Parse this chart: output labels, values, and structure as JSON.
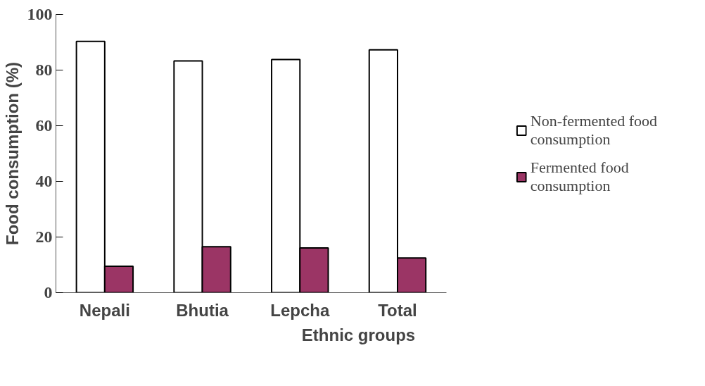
{
  "chart_data": {
    "type": "bar",
    "xlabel": "Ethnic groups",
    "ylabel": "Food consumption (%)",
    "categories": [
      "Nepali",
      "Bhutia",
      "Lepcha",
      "Total"
    ],
    "series": [
      {
        "name": "Non-fermented food consumption",
        "color": "#ffffff",
        "values": [
          90.3,
          83.3,
          83.8,
          87.3
        ]
      },
      {
        "name": "Fermented food consumption",
        "color": "#9b3565",
        "values": [
          9.5,
          16.5,
          16.1,
          12.5
        ]
      }
    ],
    "ylim": [
      0,
      100
    ],
    "yticks": [
      0,
      20,
      40,
      60,
      80,
      100
    ],
    "grid": false,
    "legend": "right"
  }
}
